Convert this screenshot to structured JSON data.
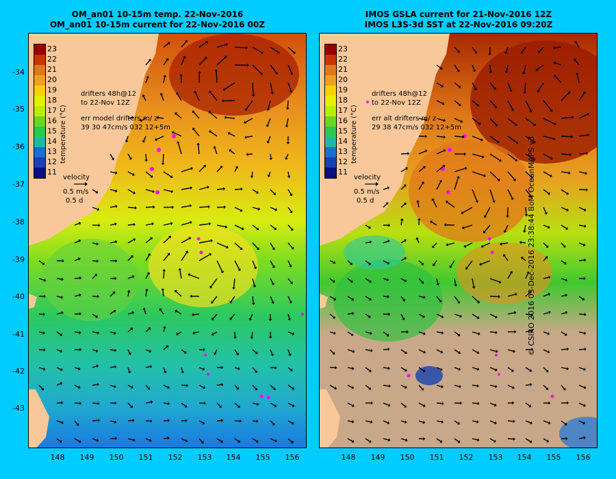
{
  "left_panel": {
    "title_line1": "OM_an01 10-15m temp. 22-Nov-2016",
    "title_line2": "OM_an01 10-15m current for 22-Nov-2016 00Z",
    "legend_drifters": "drifters 48h@12",
    "legend_to": "to 22-Nov 12Z",
    "legend_err": "err model drifters m/ z",
    "legend_err_values": "39 30 47cm/s 032 12+5m",
    "velocity_label": "velocity",
    "velocity_speed": "0.5 m/s",
    "velocity_days": "0.5 d"
  },
  "right_panel": {
    "title_line1": "IMOS GSLA current for 21-Nov-2016 12Z",
    "title_line2": "IMOS L3S-3d SST at 22-Nov-2016 09:20Z",
    "legend_drifters": "drifters 48h@12",
    "legend_to": "to 22-Nov 12Z",
    "legend_err": "err alt drifters m/ z",
    "legend_err_values": "29 38 47cm/s 032 12+5m",
    "velocity_label": "velocity",
    "velocity_speed": "0.5 m/s",
    "velocity_days": "0.5 d"
  },
  "colorbar": {
    "unit_label": "temperature (°C)",
    "ticks": [
      "23",
      "22",
      "21",
      "20",
      "19",
      "18",
      "17",
      "16",
      "15",
      "14",
      "13",
      "12",
      "11"
    ],
    "colors": [
      "#990000",
      "#cc3300",
      "#e0781e",
      "#f0a020",
      "#f8d200",
      "#e8ee00",
      "#b8ee00",
      "#66d820",
      "#2cc850",
      "#22b8a8",
      "#1870d0",
      "#1840b0",
      "#0a1080"
    ]
  },
  "latitude_labels": [
    "-34",
    "-35",
    "-36",
    "-37",
    "-38",
    "-39",
    "-40",
    "-41",
    "-42",
    "-43"
  ],
  "longitude_labels": [
    "148",
    "149",
    "150",
    "151",
    "152",
    "153",
    "154",
    "155",
    "156"
  ],
  "credit": "© CSIRO 2016   03-Dec-2016 23:38:44 BoM OceanMAPS v3",
  "colors": {
    "background": "#00ccff",
    "land": "#f8c89a",
    "no_data": "#c8a888",
    "drifter": "#ff00ff"
  }
}
